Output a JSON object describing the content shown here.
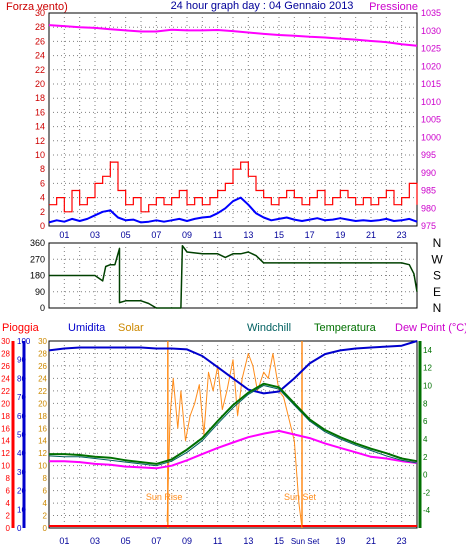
{
  "colors": {
    "wind": "#ff0000",
    "gust_avg": "#0000ff",
    "pressure": "#ff00ff",
    "direction": "#004000",
    "rain": "#ff0000",
    "humidity": "#0000cc",
    "solar": "#ff8c1a",
    "windchill": "#006060",
    "temperature": "#007000",
    "dewpoint": "#ff00ff",
    "title": "#000099",
    "grid": "#808080"
  },
  "panel1": {
    "left_title": "Forza vento)",
    "title": "24 hour graph day : 04 Gennaio 2013",
    "right_title": "Pressione"
  },
  "panel3": {
    "label_rain": "Pioggia",
    "label_humidity": "Umidita",
    "label_solar": "Solar",
    "label_windchill": "Windchill",
    "label_temperature": "Temperatura",
    "label_dewpoint": "Dew Point (°C)",
    "sunrise_label": "Sun Rise",
    "sunset_label": "Sun Set"
  },
  "chart_data": [
    {
      "type": "line",
      "name": "wind-and-pressure",
      "x_range": [
        0,
        24
      ],
      "x_ticks": [
        "01",
        "03",
        "05",
        "07",
        "09",
        "11",
        "13",
        "15",
        "17",
        "19",
        "21",
        "23"
      ],
      "left_axis": {
        "range": [
          0,
          30
        ],
        "ticks": [
          0,
          2,
          4,
          6,
          8,
          10,
          12,
          14,
          16,
          18,
          20,
          22,
          24,
          26,
          28,
          30
        ]
      },
      "right_axis": {
        "range": [
          975,
          1035
        ],
        "ticks": [
          975,
          980,
          985,
          990,
          995,
          1000,
          1005,
          1010,
          1015,
          1020,
          1025,
          1030,
          1035
        ]
      },
      "series": [
        {
          "name": "Pressione",
          "axis": "right",
          "x": [
            0,
            1,
            2,
            3,
            4,
            5,
            6,
            7,
            8,
            9,
            10,
            11,
            12,
            13,
            14,
            15,
            16,
            17,
            18,
            19,
            20,
            21,
            22,
            23,
            24
          ],
          "y": [
            1031.6,
            1031.3,
            1031,
            1030.8,
            1030.4,
            1030.1,
            1029.8,
            1029.8,
            1030.3,
            1030.1,
            1030.1,
            1030.2,
            1029.9,
            1029.5,
            1029.1,
            1028.8,
            1028.6,
            1028.3,
            1028.1,
            1027.8,
            1027.5,
            1027.1,
            1026.8,
            1026.2,
            1025.8
          ]
        },
        {
          "name": "wind-gust",
          "axis": "left",
          "x": [
            0,
            0.5,
            1,
            1.5,
            2,
            2.5,
            3,
            3.5,
            4,
            4.5,
            5,
            5.5,
            6,
            6.5,
            7,
            7.5,
            8,
            8.5,
            9,
            9.5,
            10,
            10.5,
            11,
            11.5,
            12,
            12.5,
            13,
            13.5,
            14,
            14.5,
            15,
            15.5,
            16,
            16.5,
            17,
            17.5,
            18,
            18.5,
            19,
            19.5,
            20,
            20.5,
            21,
            21.5,
            22,
            22.5,
            23,
            23.5,
            24
          ],
          "y": [
            3,
            4,
            2,
            5,
            3,
            4,
            6,
            7,
            9,
            5,
            3,
            4,
            2,
            3,
            4,
            3,
            4,
            5,
            3,
            4,
            3,
            4,
            5,
            6,
            8,
            9,
            7,
            5,
            4,
            3,
            4,
            5,
            4,
            3,
            4,
            5,
            3,
            4,
            5,
            4,
            3,
            4,
            3,
            4,
            5,
            3,
            4,
            6,
            3
          ]
        },
        {
          "name": "wind-average",
          "axis": "left",
          "x": [
            0,
            0.5,
            1,
            1.5,
            2,
            2.5,
            3,
            3.5,
            4,
            4.5,
            5,
            5.5,
            6,
            6.5,
            7,
            7.5,
            8,
            8.5,
            9,
            9.5,
            10,
            10.5,
            11,
            11.5,
            12,
            12.5,
            13,
            13.5,
            14,
            14.5,
            15,
            15.5,
            16,
            16.5,
            17,
            17.5,
            18,
            18.5,
            19,
            19.5,
            20,
            20.5,
            21,
            21.5,
            22,
            22.5,
            23,
            23.5,
            24
          ],
          "y": [
            0.5,
            0.8,
            0.6,
            1,
            0.7,
            1,
            1.5,
            2,
            2.2,
            1.2,
            0.8,
            0.9,
            0.5,
            0.6,
            0.8,
            0.6,
            0.8,
            1,
            0.7,
            1,
            1.2,
            1.3,
            1.8,
            2.5,
            3.5,
            4,
            3,
            1.8,
            1.2,
            0.8,
            1,
            1.2,
            0.9,
            0.7,
            0.9,
            1.1,
            0.8,
            0.9,
            1.1,
            0.9,
            0.7,
            0.8,
            0.7,
            0.8,
            1,
            0.7,
            0.8,
            1,
            0.6
          ]
        }
      ]
    },
    {
      "type": "line",
      "name": "wind-direction",
      "x_range": [
        0,
        24
      ],
      "left_axis": {
        "range": [
          0,
          360
        ],
        "ticks": [
          0,
          90,
          180,
          270,
          360
        ]
      },
      "right_labels": [
        "N",
        "W",
        "S",
        "E",
        "N"
      ],
      "series": [
        {
          "name": "direction",
          "x": [
            0,
            1,
            2,
            3,
            3.5,
            3.7,
            4,
            4.3,
            4.6,
            4.6,
            5,
            6,
            6.5,
            7,
            8,
            8.6,
            8.7,
            9,
            10,
            11,
            11.5,
            12,
            12.5,
            13,
            13.5,
            14,
            15,
            16,
            17,
            18,
            19,
            20,
            21,
            22,
            23,
            23.5,
            23.8,
            24
          ],
          "y": [
            180,
            180,
            180,
            180,
            150,
            230,
            240,
            240,
            330,
            30,
            40,
            40,
            25,
            0,
            0,
            0,
            345,
            310,
            300,
            300,
            280,
            300,
            300,
            310,
            290,
            250,
            250,
            250,
            250,
            250,
            250,
            250,
            250,
            250,
            250,
            240,
            190,
            90
          ]
        }
      ]
    },
    {
      "type": "line",
      "name": "temperature-humidity-solar",
      "x_range": [
        0,
        24
      ],
      "left_axes": {
        "rain": {
          "ticks": [
            0,
            2,
            4,
            6,
            8,
            10,
            12,
            14,
            16,
            18,
            20,
            22,
            24,
            26,
            28,
            30
          ]
        },
        "humidity": {
          "ticks": [
            0,
            10,
            20,
            30,
            40,
            50,
            60,
            70,
            80,
            90,
            100
          ]
        }
      },
      "right_axis": {
        "range": [
          -6,
          15
        ],
        "ticks": [
          -4,
          -2,
          0,
          2,
          4,
          6,
          8,
          10,
          12,
          14
        ]
      },
      "sunrise_hour": 7.75,
      "sunset_hour": 16.5,
      "series": [
        {
          "name": "Umidita",
          "x": [
            0,
            1,
            2,
            3,
            4,
            5,
            6,
            7,
            8,
            9,
            10,
            11,
            12,
            13,
            14,
            15,
            16,
            17,
            18,
            19,
            20,
            21,
            22,
            23,
            24
          ],
          "y": [
            95,
            96,
            96.5,
            96.5,
            96.5,
            96.5,
            96.5,
            96,
            96,
            95.5,
            92,
            86,
            80,
            74,
            72,
            73,
            80,
            88,
            93,
            95,
            96,
            96.5,
            97,
            97.5,
            100
          ]
        },
        {
          "name": "Solar",
          "x": [
            7.7,
            7.9,
            8.1,
            8.4,
            8.6,
            8.9,
            9.2,
            9.5,
            9.8,
            10.1,
            10.4,
            10.7,
            11,
            11.3,
            11.6,
            12,
            12.3,
            12.6,
            13,
            13.3,
            13.6,
            14,
            14.3,
            14.6,
            15,
            15.3,
            15.6,
            16,
            16.3,
            16.5
          ],
          "y": [
            1,
            18,
            24,
            16,
            22,
            14,
            18,
            20,
            23,
            15,
            25,
            22,
            26,
            19,
            22,
            27,
            18,
            24,
            28,
            26,
            22,
            25,
            24,
            28,
            22,
            21,
            18,
            14,
            4,
            0
          ]
        },
        {
          "name": "Temperatura",
          "x": [
            0,
            1,
            2,
            3,
            4,
            5,
            6,
            7,
            8,
            9,
            10,
            11,
            12,
            13,
            14,
            15,
            16,
            17,
            18,
            19,
            20,
            21,
            22,
            23,
            24
          ],
          "y": [
            2.3,
            2.3,
            2.2,
            2,
            1.9,
            1.6,
            1.4,
            1.2,
            1.7,
            2.8,
            4.1,
            6,
            7.8,
            9.2,
            10.2,
            9.8,
            8,
            6.2,
            5,
            4.2,
            3.5,
            2.9,
            2.4,
            1.8,
            1.5
          ]
        },
        {
          "name": "Windchill",
          "x": [
            0,
            1,
            2,
            3,
            4,
            5,
            6,
            7,
            8,
            9,
            10,
            11,
            12,
            13,
            14,
            15,
            16,
            17,
            18,
            19,
            20,
            21,
            22,
            23,
            24
          ],
          "y": [
            2.1,
            2,
            2,
            1.8,
            1.6,
            1.4,
            1.2,
            1,
            1.5,
            2.5,
            3.8,
            5.7,
            7.5,
            9,
            10,
            9.6,
            7.8,
            6,
            4.8,
            4,
            3.3,
            2.7,
            2.1,
            1.6,
            1.3
          ]
        },
        {
          "name": "Dew Point (°C)",
          "x": [
            0,
            1,
            2,
            3,
            4,
            5,
            6,
            7,
            8,
            9,
            10,
            11,
            12,
            13,
            14,
            15,
            16,
            17,
            18,
            19,
            20,
            21,
            22,
            23,
            24
          ],
          "y": [
            1.5,
            1.5,
            1.4,
            1.2,
            1.1,
            0.9,
            0.8,
            0.7,
            1,
            1.6,
            2.3,
            3,
            3.6,
            4.2,
            4.6,
            4.9,
            4.5,
            4.1,
            3.5,
            3,
            2.5,
            2,
            1.8,
            1.5,
            1.3
          ]
        }
      ]
    }
  ]
}
